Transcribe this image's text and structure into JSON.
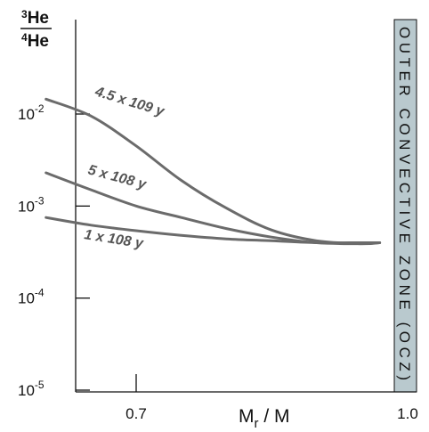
{
  "chart_data": {
    "type": "line",
    "title": "",
    "ylabel": {
      "numerator_sup": "3",
      "numerator": "He",
      "denominator_sup": "4",
      "denominator": "He"
    },
    "xlabel": {
      "main": "M",
      "sub": "r",
      "rest": " / M"
    },
    "yscale": "log",
    "ylim": [
      1e-05,
      0.04
    ],
    "xlim": [
      0.59,
      1.0
    ],
    "x_ticks": [
      {
        "value": 0.7,
        "label": "0.7"
      },
      {
        "value": 1.0,
        "label": "1.0"
      }
    ],
    "y_ticks": [
      {
        "value": 0.01,
        "base": "10",
        "exp": "-2"
      },
      {
        "value": 0.001,
        "base": "10",
        "exp": "-3"
      },
      {
        "value": 0.0001,
        "base": "10",
        "exp": "-4"
      },
      {
        "value": 1e-05,
        "base": "10",
        "exp": "-5"
      }
    ],
    "grid": false,
    "shaded_region": {
      "x_start": 0.97,
      "x_end": 1.0,
      "label": "OUTER CONVECTIVE ZONE (OCZ)",
      "color": "#b9c9ce"
    },
    "series": [
      {
        "name": "4.5 x 109 y",
        "x": [
          0.6,
          0.65,
          0.7,
          0.75,
          0.8,
          0.85,
          0.9,
          0.95,
          0.97
        ],
        "y": [
          0.0145,
          0.0095,
          0.0045,
          0.0019,
          0.00095,
          0.00055,
          0.00042,
          0.00039,
          0.0004
        ]
      },
      {
        "name": "5 x 108 y",
        "x": [
          0.6,
          0.65,
          0.7,
          0.75,
          0.8,
          0.85,
          0.9,
          0.95,
          0.97
        ],
        "y": [
          0.0023,
          0.0015,
          0.001,
          0.00075,
          0.00057,
          0.00046,
          0.0004,
          0.00039,
          0.0004
        ]
      },
      {
        "name": "1 x 108 y",
        "x": [
          0.6,
          0.65,
          0.7,
          0.75,
          0.8,
          0.85,
          0.9,
          0.95,
          0.97
        ],
        "y": [
          0.00075,
          0.00062,
          0.00054,
          0.00048,
          0.00044,
          0.00042,
          0.0004,
          0.0004,
          0.0004
        ]
      }
    ],
    "line_color": "#6b6b6b"
  }
}
